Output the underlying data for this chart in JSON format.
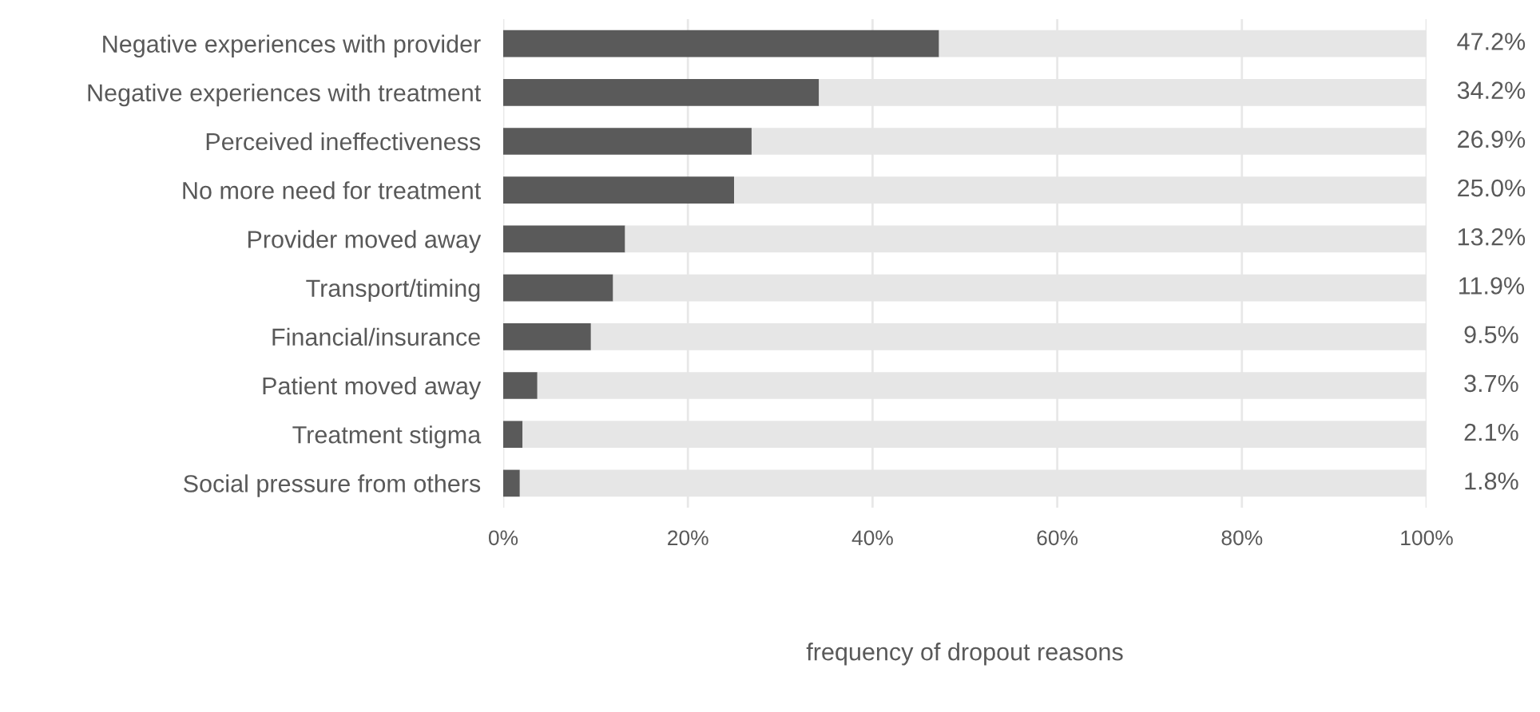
{
  "chart_data": {
    "type": "bar",
    "orientation": "horizontal",
    "stacked": true,
    "xlabel": "frequency of dropout reasons",
    "categories": [
      "Negative experiences with provider",
      "Negative experiences with treatment",
      "Perceived ineffectiveness",
      "No more need for treatment",
      "Provider moved away",
      "Transport/timing",
      "Financial/insurance",
      "Patient moved away",
      "Treatment stigma",
      "Social pressure from others"
    ],
    "series": [
      {
        "color": "#5a5a5a",
        "values": [
          47.2,
          34.2,
          26.9,
          25.0,
          13.2,
          11.9,
          9.5,
          3.7,
          2.1,
          1.8
        ],
        "value_labels": [
          "47.2%",
          "34.2%",
          "26.9%",
          "25.0%",
          "13.2%",
          "11.9%",
          "9.5%",
          "3.7%",
          "2.1%",
          "1.8%"
        ]
      },
      {
        "color": "#e6e6e6",
        "values": [
          52.8,
          65.8,
          73.1,
          75.0,
          86.8,
          88.1,
          90.5,
          96.3,
          97.9,
          98.2
        ]
      }
    ],
    "xlim": [
      0,
      100
    ],
    "xticks": [
      {
        "value": 0,
        "label": "0%"
      },
      {
        "value": 20,
        "label": "20%"
      },
      {
        "value": 40,
        "label": "40%"
      },
      {
        "value": 60,
        "label": "60%"
      },
      {
        "value": 80,
        "label": "80%"
      },
      {
        "value": 100,
        "label": "100%"
      }
    ],
    "grid": "x",
    "legend": false
  }
}
